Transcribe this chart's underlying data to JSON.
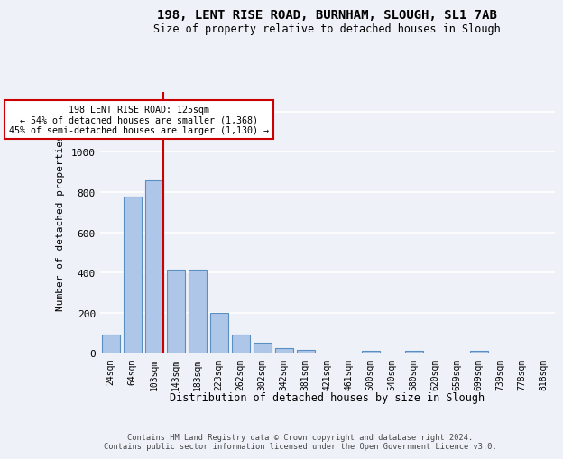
{
  "title1": "198, LENT RISE ROAD, BURNHAM, SLOUGH, SL1 7AB",
  "title2": "Size of property relative to detached houses in Slough",
  "xlabel": "Distribution of detached houses by size in Slough",
  "ylabel": "Number of detached properties",
  "footer1": "Contains HM Land Registry data © Crown copyright and database right 2024.",
  "footer2": "Contains public sector information licensed under the Open Government Licence v3.0.",
  "bar_labels": [
    "24sqm",
    "64sqm",
    "103sqm",
    "143sqm",
    "183sqm",
    "223sqm",
    "262sqm",
    "302sqm",
    "342sqm",
    "381sqm",
    "421sqm",
    "461sqm",
    "500sqm",
    "540sqm",
    "580sqm",
    "620sqm",
    "659sqm",
    "699sqm",
    "739sqm",
    "778sqm",
    "818sqm"
  ],
  "bar_values": [
    90,
    780,
    860,
    415,
    415,
    200,
    90,
    52,
    25,
    17,
    0,
    0,
    12,
    0,
    12,
    0,
    0,
    12,
    0,
    0,
    0
  ],
  "bar_color": "#aec6e8",
  "bar_edge_color": "#5a8fc2",
  "ylim": [
    0,
    1300
  ],
  "yticks": [
    0,
    200,
    400,
    600,
    800,
    1000,
    1200
  ],
  "property_bin_index": 2,
  "annotation_title": "198 LENT RISE ROAD: 125sqm",
  "annotation_line1": "← 54% of detached houses are smaller (1,368)",
  "annotation_line2": "45% of semi-detached houses are larger (1,130) →",
  "vline_color": "#cc0000",
  "annotation_box_facecolor": "#ffffff",
  "annotation_box_edgecolor": "#cc0000",
  "bg_color": "#eef2f8",
  "grid_color": "#ffffff"
}
